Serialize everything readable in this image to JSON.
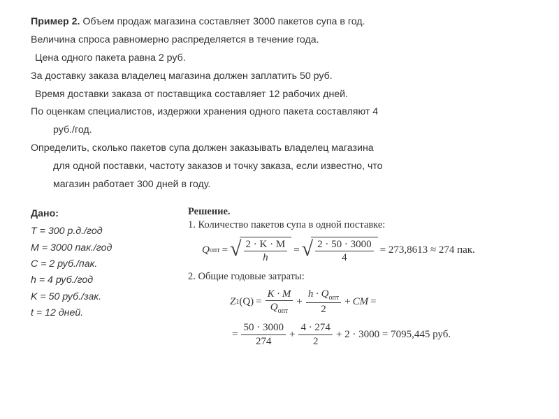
{
  "problem": {
    "line1_prefix": "Пример 2. ",
    "line1": "Объем продаж магазина составляет 3000 пакетов супа в год.",
    "line2": "Величина спроса равномерно распределяется в течение года.",
    "line3": " Цена одного пакета равна 2 руб.",
    "line4": "За доставку заказа владелец магазина должен заплатить 50 руб.",
    "line5": " Время доставки заказа от поставщика составляет 12 рабочих дней.",
    "line6a": "По оценкам специалистов, издержки хранения одного пакета составляют 4",
    "line6b": "руб./год.",
    "line7a": "Определить, сколько пакетов супа должен заказывать владелец магазина",
    "line7b": "для одной поставки, частоту заказов и точку заказа, если известно, что",
    "line7c": "магазин работает 300 дней в году."
  },
  "given": {
    "heading": "Дано:",
    "T": "T = 300 р.д./год",
    "M": "M = 3000 пак./год",
    "C": "C = 2 руб./пак.",
    "h": "h = 4 руб./год",
    "K": "K = 50 руб./зак.",
    "t": " t = 12 дней."
  },
  "solution": {
    "heading": "Решение.",
    "step1": "1. Количество пакетов супа в одной поставке:",
    "step2": "2. Общие годовые затраты:",
    "eq1": {
      "lhs_var": "Q",
      "lhs_sub": "опт",
      "sq1_num": "2 · K · M",
      "sq1_den": "h",
      "sq2_num": "2 · 50 · 3000",
      "sq2_den": "4",
      "result": "= 273,8613 ≈ 274  пак."
    },
    "eq2": {
      "lhs_var": "Z",
      "lhs_sub1": "1",
      "lhs_arg": "(Q)",
      "t1_num": "K · M",
      "t1_den_var": "Q",
      "t1_den_sub": "опт",
      "plus1": "+",
      "t2_num_a": "h · Q",
      "t2_num_sub": "опт",
      "t2_den": "2",
      "plus2": "+",
      "cm": "CM",
      "eqend": "="
    },
    "eq3": {
      "t1_num": "50 · 3000",
      "t1_den": "274",
      "plus1": "+",
      "t2_num": "4 · 274",
      "t2_den": "2",
      "plus2": "+ 2 · 3000 = 7095,445 руб."
    }
  }
}
